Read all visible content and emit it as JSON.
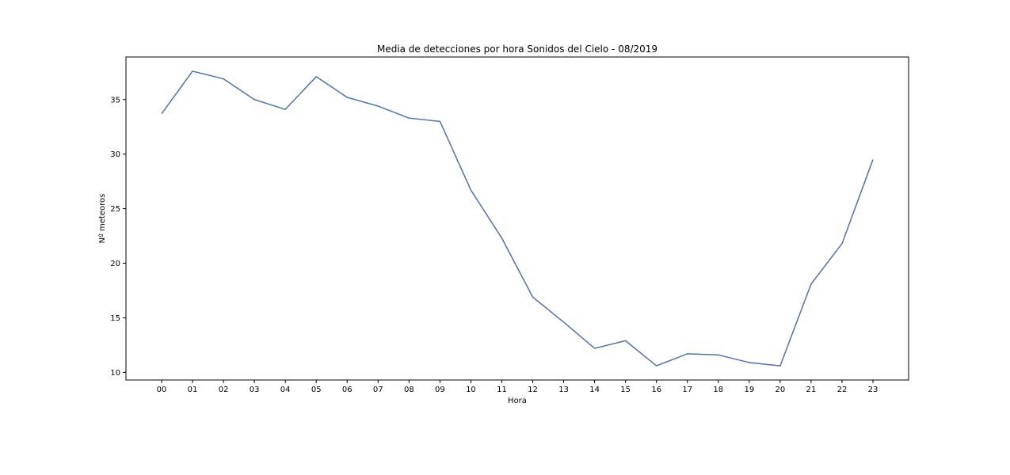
{
  "chart_data": {
    "type": "line",
    "title": "Media de detecciones por hora Sonidos del Cielo - 08/2019",
    "xlabel": "Hora",
    "ylabel": "Nº meteoros",
    "categories": [
      "00",
      "01",
      "02",
      "03",
      "04",
      "05",
      "06",
      "07",
      "08",
      "09",
      "10",
      "11",
      "12",
      "13",
      "14",
      "15",
      "16",
      "17",
      "18",
      "19",
      "20",
      "21",
      "22",
      "23"
    ],
    "yticks": [
      10,
      15,
      20,
      25,
      30,
      35
    ],
    "ylim": [
      9.3,
      38.9
    ],
    "grid": false,
    "series": [
      {
        "values": [
          33.7,
          37.6,
          36.9,
          35.0,
          34.1,
          37.1,
          35.2,
          34.4,
          33.3,
          33.0,
          26.7,
          22.3,
          16.9,
          14.6,
          12.2,
          12.9,
          10.6,
          11.7,
          11.6,
          10.9,
          10.6,
          18.1,
          21.8,
          29.5
        ]
      }
    ],
    "colors": {
      "line": "#4c72b0"
    }
  }
}
